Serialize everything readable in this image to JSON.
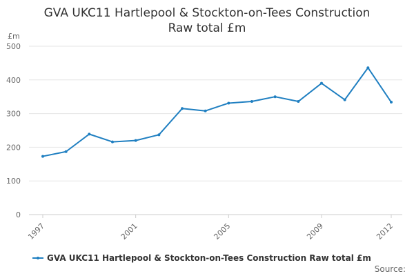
{
  "chart_data": {
    "type": "line",
    "title": "GVA UKC11 Hartlepool & Stockton-on-Tees Construction Raw total £m",
    "title_lines": [
      "GVA UKC11 Hartlepool & Stockton-on-Tees Construction",
      "Raw total £m"
    ],
    "ylabel": "£m",
    "xlabel": "",
    "x": [
      1997,
      1998,
      1999,
      2000,
      2001,
      2002,
      2003,
      2004,
      2005,
      2006,
      2007,
      2008,
      2009,
      2010,
      2011,
      2012
    ],
    "x_tick_labels": [
      "1997",
      "2001",
      "2005",
      "2009",
      "2012"
    ],
    "y_ticks": [
      0,
      100,
      200,
      300,
      400,
      500
    ],
    "ylim": [
      0,
      500
    ],
    "series": [
      {
        "name": "GVA UKC11 Hartlepool & Stockton-on-Tees Construction Raw total £m",
        "color": "#1f7fc1",
        "values": [
          173,
          187,
          239,
          216,
          220,
          237,
          315,
          308,
          331,
          336,
          350,
          336,
          390,
          341,
          436,
          334
        ]
      }
    ],
    "grid": true,
    "legend": "bottom-left"
  },
  "source_label": "Source:"
}
